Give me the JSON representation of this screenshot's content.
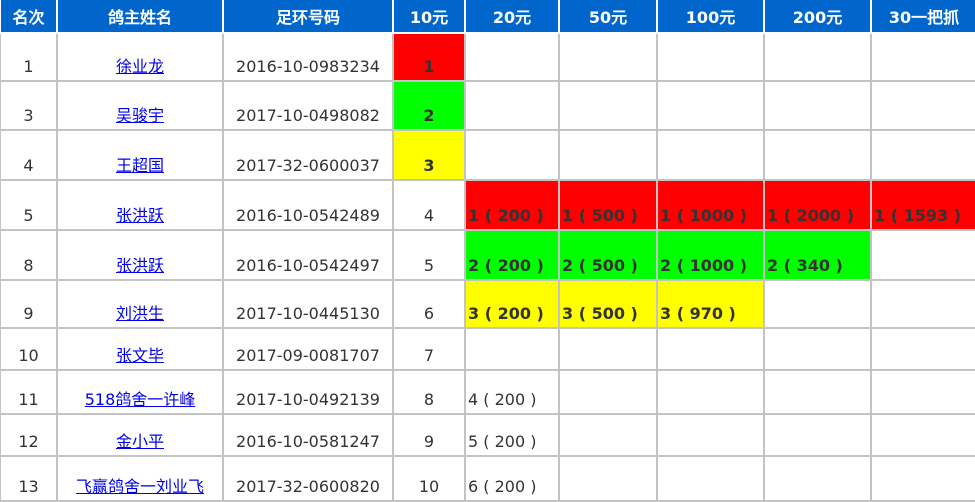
{
  "colors": {
    "header_bg": "#0066cc",
    "red": "#ff0000",
    "green": "#00ff00",
    "yellow": "#ffff00",
    "link": "#0000ee"
  },
  "headers": [
    "名次",
    "鸽主姓名",
    "足环号码",
    "10元",
    "20元",
    "50元",
    "100元",
    "200元",
    "30一把抓"
  ],
  "rows": [
    {
      "rank": "1",
      "name": "徐业龙",
      "ring": "2016-10-0983234",
      "prizes": [
        {
          "t": "1",
          "c": "red"
        },
        {
          "t": "",
          "c": ""
        },
        {
          "t": "",
          "c": ""
        },
        {
          "t": "",
          "c": ""
        },
        {
          "t": "",
          "c": ""
        },
        {
          "t": "",
          "c": ""
        }
      ]
    },
    {
      "rank": "3",
      "name": "吴骏宇",
      "ring": "2017-10-0498082",
      "prizes": [
        {
          "t": "2",
          "c": "green"
        },
        {
          "t": "",
          "c": ""
        },
        {
          "t": "",
          "c": ""
        },
        {
          "t": "",
          "c": ""
        },
        {
          "t": "",
          "c": ""
        },
        {
          "t": "",
          "c": ""
        }
      ]
    },
    {
      "rank": "4",
      "name": "王超国",
      "ring": "2017-32-0600037",
      "prizes": [
        {
          "t": "3",
          "c": "yellow"
        },
        {
          "t": "",
          "c": ""
        },
        {
          "t": "",
          "c": ""
        },
        {
          "t": "",
          "c": ""
        },
        {
          "t": "",
          "c": ""
        },
        {
          "t": "",
          "c": ""
        }
      ]
    },
    {
      "rank": "5",
      "name": "张洪跃",
      "ring": "2016-10-0542489",
      "prizes": [
        {
          "t": "4",
          "c": ""
        },
        {
          "t": "1 ( 200 )",
          "c": "red"
        },
        {
          "t": "1 ( 500 )",
          "c": "red"
        },
        {
          "t": "1 ( 1000 )",
          "c": "red"
        },
        {
          "t": "1 ( 2000 )",
          "c": "red"
        },
        {
          "t": "1 ( 1593 )",
          "c": "red"
        }
      ]
    },
    {
      "rank": "8",
      "name": "张洪跃",
      "ring": "2016-10-0542497",
      "prizes": [
        {
          "t": "5",
          "c": ""
        },
        {
          "t": "2 ( 200 )",
          "c": "green"
        },
        {
          "t": "2 ( 500 )",
          "c": "green"
        },
        {
          "t": "2 ( 1000 )",
          "c": "green"
        },
        {
          "t": "2 ( 340 )",
          "c": "green"
        },
        {
          "t": "",
          "c": ""
        }
      ]
    },
    {
      "rank": "9",
      "name": "刘洪生",
      "ring": "2017-10-0445130",
      "prizes": [
        {
          "t": "6",
          "c": ""
        },
        {
          "t": "3 ( 200 )",
          "c": "yellow"
        },
        {
          "t": "3 ( 500 )",
          "c": "yellow"
        },
        {
          "t": "3 ( 970 )",
          "c": "yellow"
        },
        {
          "t": "",
          "c": ""
        },
        {
          "t": "",
          "c": ""
        }
      ]
    },
    {
      "rank": "10",
      "name": "张文毕",
      "ring": "2017-09-0081707",
      "prizes": [
        {
          "t": "7",
          "c": ""
        },
        {
          "t": "",
          "c": ""
        },
        {
          "t": "",
          "c": ""
        },
        {
          "t": "",
          "c": ""
        },
        {
          "t": "",
          "c": ""
        },
        {
          "t": "",
          "c": ""
        }
      ]
    },
    {
      "rank": "11",
      "name": "518鸽舍一许峰",
      "ring": "2017-10-0492139",
      "prizes": [
        {
          "t": "8",
          "c": ""
        },
        {
          "t": "4 ( 200 )",
          "c": ""
        },
        {
          "t": "",
          "c": ""
        },
        {
          "t": "",
          "c": ""
        },
        {
          "t": "",
          "c": ""
        },
        {
          "t": "",
          "c": ""
        }
      ]
    },
    {
      "rank": "12",
      "name": "金小平",
      "ring": "2016-10-0581247",
      "prizes": [
        {
          "t": "9",
          "c": ""
        },
        {
          "t": "5 ( 200 )",
          "c": ""
        },
        {
          "t": "",
          "c": ""
        },
        {
          "t": "",
          "c": ""
        },
        {
          "t": "",
          "c": ""
        },
        {
          "t": "",
          "c": ""
        }
      ]
    },
    {
      "rank": "13",
      "name": "飞赢鸽舍一刘业飞",
      "ring": "2017-32-0600820",
      "prizes": [
        {
          "t": "10",
          "c": ""
        },
        {
          "t": "6 ( 200 )",
          "c": ""
        },
        {
          "t": "",
          "c": ""
        },
        {
          "t": "",
          "c": ""
        },
        {
          "t": "",
          "c": ""
        },
        {
          "t": "",
          "c": ""
        }
      ]
    }
  ]
}
